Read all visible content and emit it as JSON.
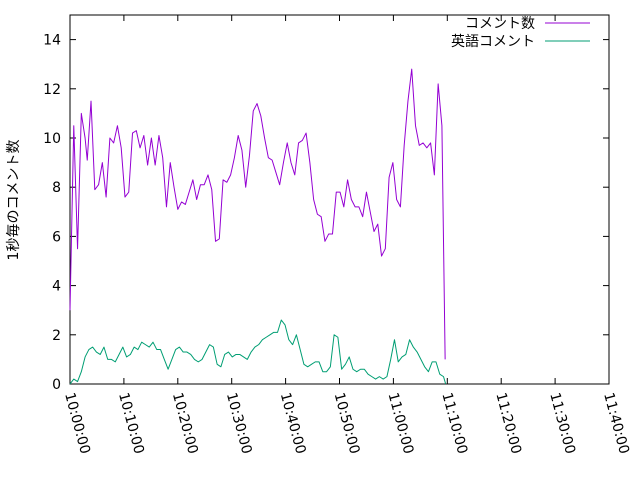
{
  "chart_data": {
    "type": "line",
    "title": "",
    "xlabel": "",
    "ylabel": "1秒毎のコメント数",
    "xlim": [
      "10:00:00",
      "11:40:00"
    ],
    "ylim": [
      0,
      15
    ],
    "x_ticks": [
      "10:00:00",
      "10:10:00",
      "10:20:00",
      "10:30:00",
      "10:40:00",
      "10:50:00",
      "11:00:00",
      "11:10:00",
      "11:20:00",
      "11:30:00",
      "11:40:00"
    ],
    "y_ticks": [
      "0",
      "2",
      "4",
      "6",
      "8",
      "10",
      "12",
      "14"
    ],
    "grid": false,
    "legend_position": "top-right",
    "x_unit": "minutes since 10:00:00",
    "series": [
      {
        "name": "コメント数",
        "color": "#9400d3",
        "points": [
          [
            0.0,
            3.0
          ],
          [
            0.7,
            10.5
          ],
          [
            1.4,
            5.5
          ],
          [
            2.1,
            11.0
          ],
          [
            2.8,
            10.0
          ],
          [
            3.2,
            9.1
          ],
          [
            3.9,
            11.5
          ],
          [
            4.6,
            7.9
          ],
          [
            5.3,
            8.1
          ],
          [
            6.0,
            9.0
          ],
          [
            6.7,
            7.6
          ],
          [
            7.4,
            10.0
          ],
          [
            8.1,
            9.8
          ],
          [
            8.8,
            10.5
          ],
          [
            9.5,
            9.6
          ],
          [
            10.2,
            7.6
          ],
          [
            10.9,
            7.8
          ],
          [
            11.6,
            10.2
          ],
          [
            12.3,
            10.3
          ],
          [
            13.0,
            9.6
          ],
          [
            13.7,
            10.1
          ],
          [
            14.4,
            8.9
          ],
          [
            15.1,
            10.0
          ],
          [
            15.8,
            8.9
          ],
          [
            16.5,
            10.1
          ],
          [
            17.2,
            9.2
          ],
          [
            17.9,
            7.2
          ],
          [
            18.6,
            9.0
          ],
          [
            19.3,
            8.0
          ],
          [
            20.0,
            7.1
          ],
          [
            20.7,
            7.4
          ],
          [
            21.4,
            7.3
          ],
          [
            22.1,
            7.8
          ],
          [
            22.8,
            8.3
          ],
          [
            23.5,
            7.5
          ],
          [
            24.2,
            8.1
          ],
          [
            24.9,
            8.1
          ],
          [
            25.6,
            8.5
          ],
          [
            26.3,
            7.9
          ],
          [
            27.0,
            5.8
          ],
          [
            27.7,
            5.9
          ],
          [
            28.4,
            8.3
          ],
          [
            29.1,
            8.2
          ],
          [
            29.8,
            8.5
          ],
          [
            30.5,
            9.2
          ],
          [
            31.2,
            10.1
          ],
          [
            31.9,
            9.5
          ],
          [
            32.6,
            8.0
          ],
          [
            33.3,
            9.3
          ],
          [
            34.0,
            11.1
          ],
          [
            34.7,
            11.4
          ],
          [
            35.4,
            10.9
          ],
          [
            36.1,
            10.0
          ],
          [
            36.8,
            9.2
          ],
          [
            37.5,
            9.1
          ],
          [
            38.2,
            8.6
          ],
          [
            38.9,
            8.1
          ],
          [
            39.6,
            9.0
          ],
          [
            40.3,
            9.8
          ],
          [
            41.0,
            9.0
          ],
          [
            41.7,
            8.5
          ],
          [
            42.4,
            9.8
          ],
          [
            43.1,
            9.9
          ],
          [
            43.8,
            10.2
          ],
          [
            44.5,
            9.0
          ],
          [
            45.2,
            7.5
          ],
          [
            45.9,
            6.9
          ],
          [
            46.6,
            6.8
          ],
          [
            47.3,
            5.8
          ],
          [
            48.0,
            6.1
          ],
          [
            48.7,
            6.1
          ],
          [
            49.4,
            7.8
          ],
          [
            50.1,
            7.8
          ],
          [
            50.8,
            7.2
          ],
          [
            51.5,
            8.3
          ],
          [
            52.2,
            7.5
          ],
          [
            52.9,
            7.2
          ],
          [
            53.6,
            7.2
          ],
          [
            54.3,
            6.8
          ],
          [
            55.0,
            7.8
          ],
          [
            55.7,
            7.0
          ],
          [
            56.4,
            6.2
          ],
          [
            57.1,
            6.5
          ],
          [
            57.8,
            5.2
          ],
          [
            58.5,
            5.5
          ],
          [
            59.2,
            8.4
          ],
          [
            59.9,
            9.0
          ],
          [
            60.6,
            7.5
          ],
          [
            61.3,
            7.2
          ],
          [
            62.0,
            9.7
          ],
          [
            62.7,
            11.5
          ],
          [
            63.4,
            12.8
          ],
          [
            64.1,
            10.5
          ],
          [
            64.8,
            9.7
          ],
          [
            65.5,
            9.8
          ],
          [
            66.2,
            9.6
          ],
          [
            66.9,
            9.8
          ],
          [
            67.6,
            8.5
          ],
          [
            68.3,
            12.2
          ],
          [
            69.0,
            10.5
          ],
          [
            69.6,
            1.0
          ]
        ]
      },
      {
        "name": "英語コメント",
        "color": "#009e73",
        "points": [
          [
            0.0,
            0.0
          ],
          [
            0.7,
            0.2
          ],
          [
            1.4,
            0.1
          ],
          [
            2.1,
            0.5
          ],
          [
            2.8,
            1.1
          ],
          [
            3.5,
            1.4
          ],
          [
            4.2,
            1.5
          ],
          [
            4.9,
            1.3
          ],
          [
            5.6,
            1.2
          ],
          [
            6.3,
            1.5
          ],
          [
            7.0,
            1.0
          ],
          [
            7.7,
            1.0
          ],
          [
            8.4,
            0.9
          ],
          [
            9.1,
            1.2
          ],
          [
            9.8,
            1.5
          ],
          [
            10.5,
            1.1
          ],
          [
            11.2,
            1.2
          ],
          [
            11.9,
            1.5
          ],
          [
            12.6,
            1.4
          ],
          [
            13.3,
            1.7
          ],
          [
            14.0,
            1.6
          ],
          [
            14.7,
            1.5
          ],
          [
            15.4,
            1.7
          ],
          [
            16.1,
            1.4
          ],
          [
            16.8,
            1.4
          ],
          [
            17.5,
            1.0
          ],
          [
            18.2,
            0.6
          ],
          [
            18.9,
            1.0
          ],
          [
            19.6,
            1.4
          ],
          [
            20.3,
            1.5
          ],
          [
            21.0,
            1.3
          ],
          [
            21.7,
            1.3
          ],
          [
            22.4,
            1.2
          ],
          [
            23.1,
            1.0
          ],
          [
            23.8,
            0.9
          ],
          [
            24.5,
            1.0
          ],
          [
            25.2,
            1.3
          ],
          [
            25.9,
            1.6
          ],
          [
            26.6,
            1.5
          ],
          [
            27.3,
            0.8
          ],
          [
            28.0,
            0.7
          ],
          [
            28.7,
            1.2
          ],
          [
            29.4,
            1.3
          ],
          [
            30.1,
            1.1
          ],
          [
            30.8,
            1.2
          ],
          [
            31.5,
            1.2
          ],
          [
            32.2,
            1.1
          ],
          [
            32.9,
            1.0
          ],
          [
            33.6,
            1.3
          ],
          [
            34.3,
            1.5
          ],
          [
            35.0,
            1.6
          ],
          [
            35.7,
            1.8
          ],
          [
            36.4,
            1.9
          ],
          [
            37.1,
            2.0
          ],
          [
            37.8,
            2.1
          ],
          [
            38.5,
            2.1
          ],
          [
            39.2,
            2.6
          ],
          [
            39.9,
            2.4
          ],
          [
            40.6,
            1.8
          ],
          [
            41.3,
            1.6
          ],
          [
            42.0,
            2.0
          ],
          [
            42.7,
            1.4
          ],
          [
            43.4,
            0.8
          ],
          [
            44.1,
            0.7
          ],
          [
            44.8,
            0.8
          ],
          [
            45.5,
            0.9
          ],
          [
            46.2,
            0.9
          ],
          [
            46.9,
            0.5
          ],
          [
            47.6,
            0.5
          ],
          [
            48.3,
            0.7
          ],
          [
            49.0,
            2.0
          ],
          [
            49.7,
            1.9
          ],
          [
            50.4,
            0.6
          ],
          [
            51.1,
            0.8
          ],
          [
            51.8,
            1.1
          ],
          [
            52.5,
            0.6
          ],
          [
            53.2,
            0.5
          ],
          [
            53.9,
            0.6
          ],
          [
            54.6,
            0.6
          ],
          [
            55.3,
            0.4
          ],
          [
            56.0,
            0.3
          ],
          [
            56.7,
            0.2
          ],
          [
            57.4,
            0.3
          ],
          [
            58.1,
            0.2
          ],
          [
            58.8,
            0.3
          ],
          [
            59.5,
            1.0
          ],
          [
            60.2,
            1.8
          ],
          [
            60.9,
            0.9
          ],
          [
            61.6,
            1.1
          ],
          [
            62.3,
            1.2
          ],
          [
            63.0,
            1.8
          ],
          [
            63.7,
            1.5
          ],
          [
            64.4,
            1.3
          ],
          [
            65.1,
            1.0
          ],
          [
            65.8,
            0.7
          ],
          [
            66.5,
            0.5
          ],
          [
            67.2,
            0.9
          ],
          [
            67.9,
            0.9
          ],
          [
            68.6,
            0.4
          ],
          [
            69.3,
            0.3
          ],
          [
            69.7,
            0.0
          ]
        ]
      }
    ]
  }
}
